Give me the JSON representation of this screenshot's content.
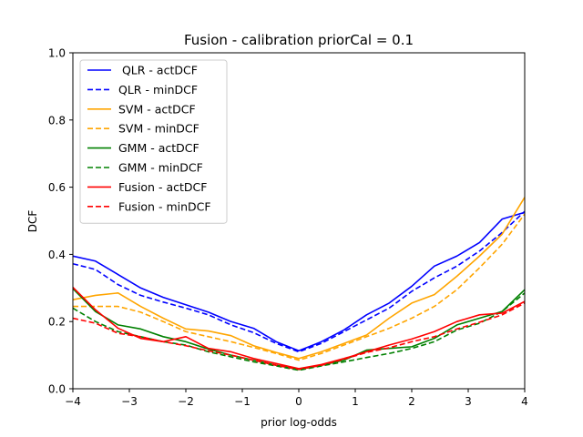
{
  "chart_data": {
    "type": "line",
    "title": "Fusion - calibration priorCal = 0.1",
    "xlabel": "prior log-odds",
    "ylabel": "DCF",
    "xlim": [
      -4,
      4
    ],
    "ylim": [
      0,
      1
    ],
    "xticks": [
      "−4",
      "−3",
      "−2",
      "−1",
      "0",
      "1",
      "2",
      "3",
      "4"
    ],
    "yticks": [
      "0.0",
      "0.2",
      "0.4",
      "0.6",
      "0.8",
      "1.0"
    ],
    "grid": false,
    "legend_position": "top-left",
    "x": [
      -4.0,
      -3.6,
      -3.2,
      -2.8,
      -2.4,
      -2.0,
      -1.6,
      -1.2,
      -0.8,
      -0.4,
      0.0,
      0.4,
      0.8,
      1.2,
      1.6,
      2.0,
      2.4,
      2.8,
      3.2,
      3.6,
      4.0
    ],
    "series": [
      {
        "name": " QLR - actDCF",
        "color": "#0000ff",
        "dash": "solid",
        "values": [
          0.395,
          0.38,
          0.34,
          0.3,
          0.272,
          0.25,
          0.228,
          0.2,
          0.18,
          0.14,
          0.113,
          0.14,
          0.175,
          0.22,
          0.255,
          0.305,
          0.365,
          0.395,
          0.435,
          0.505,
          0.525
        ]
      },
      {
        "name": "QLR - minDCF",
        "color": "#0000ff",
        "dash": "dashed",
        "values": [
          0.372,
          0.355,
          0.31,
          0.278,
          0.258,
          0.24,
          0.22,
          0.19,
          0.167,
          0.135,
          0.11,
          0.135,
          0.17,
          0.205,
          0.24,
          0.29,
          0.33,
          0.365,
          0.41,
          0.465,
          0.528
        ]
      },
      {
        "name": "SVM - actDCF",
        "color": "#ffa500",
        "dash": "solid",
        "values": [
          0.265,
          0.278,
          0.285,
          0.245,
          0.21,
          0.178,
          0.172,
          0.158,
          0.128,
          0.108,
          0.09,
          0.11,
          0.135,
          0.16,
          0.21,
          0.255,
          0.28,
          0.335,
          0.395,
          0.46,
          0.57
        ]
      },
      {
        "name": "SVM - minDCF",
        "color": "#ffa500",
        "dash": "dashed",
        "values": [
          0.245,
          0.245,
          0.245,
          0.228,
          0.2,
          0.17,
          0.155,
          0.14,
          0.123,
          0.105,
          0.085,
          0.105,
          0.13,
          0.155,
          0.18,
          0.21,
          0.245,
          0.295,
          0.36,
          0.43,
          0.52
        ]
      },
      {
        "name": "GMM - actDCF",
        "color": "#008000",
        "dash": "solid",
        "values": [
          0.298,
          0.23,
          0.19,
          0.178,
          0.155,
          0.14,
          0.118,
          0.1,
          0.085,
          0.07,
          0.057,
          0.07,
          0.085,
          0.115,
          0.12,
          0.125,
          0.15,
          0.19,
          0.21,
          0.23,
          0.295
        ]
      },
      {
        "name": "GMM - minDCF",
        "color": "#008000",
        "dash": "dashed",
        "values": [
          0.24,
          0.2,
          0.17,
          0.155,
          0.14,
          0.13,
          0.11,
          0.095,
          0.08,
          0.068,
          0.055,
          0.068,
          0.08,
          0.093,
          0.105,
          0.12,
          0.14,
          0.175,
          0.195,
          0.23,
          0.285
        ]
      },
      {
        "name": "Fusion - actDCF",
        "color": "#ff0000",
        "dash": "solid",
        "values": [
          0.302,
          0.235,
          0.18,
          0.15,
          0.14,
          0.155,
          0.12,
          0.11,
          0.09,
          0.075,
          0.06,
          0.072,
          0.09,
          0.11,
          0.13,
          0.148,
          0.17,
          0.2,
          0.22,
          0.225,
          0.26
        ]
      },
      {
        "name": "Fusion - minDCF",
        "color": "#ff0000",
        "dash": "dashed",
        "values": [
          0.21,
          0.195,
          0.165,
          0.155,
          0.14,
          0.128,
          0.113,
          0.1,
          0.085,
          0.07,
          0.058,
          0.07,
          0.088,
          0.108,
          0.122,
          0.14,
          0.155,
          0.178,
          0.198,
          0.22,
          0.255
        ]
      }
    ]
  }
}
